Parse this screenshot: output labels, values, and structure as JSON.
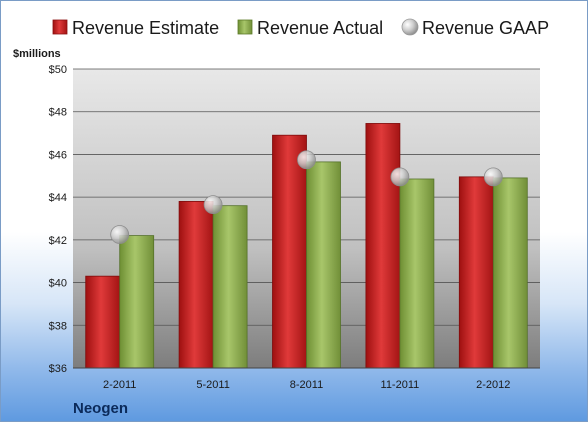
{
  "legend": {
    "estimate": "Revenue Estimate",
    "actual": "Revenue Actual",
    "gaap": "Revenue GAAP"
  },
  "unit_label": "$millions",
  "company": "Neogen",
  "colors": {
    "estimate": "#cc1f1f",
    "actual": "#8faf4f",
    "gaap": "#d4d4d4"
  },
  "chart_data": {
    "type": "bar",
    "categories": [
      "2-2011",
      "5-2011",
      "8-2011",
      "11-2011",
      "2-2012"
    ],
    "series": [
      {
        "name": "Revenue Estimate",
        "values": [
          40.3,
          43.8,
          46.9,
          47.45,
          44.95
        ]
      },
      {
        "name": "Revenue Actual",
        "values": [
          42.2,
          43.6,
          45.65,
          44.85,
          44.9
        ]
      },
      {
        "name": "Revenue GAAP",
        "values": [
          42.25,
          43.65,
          45.75,
          44.95,
          44.95
        ]
      }
    ],
    "ylabel": "$millions",
    "ylim": [
      36,
      50
    ],
    "yticks": [
      "$36",
      "$38",
      "$40",
      "$42",
      "$44",
      "$46",
      "$48",
      "$50"
    ],
    "grid": true,
    "legend_position": "top"
  }
}
